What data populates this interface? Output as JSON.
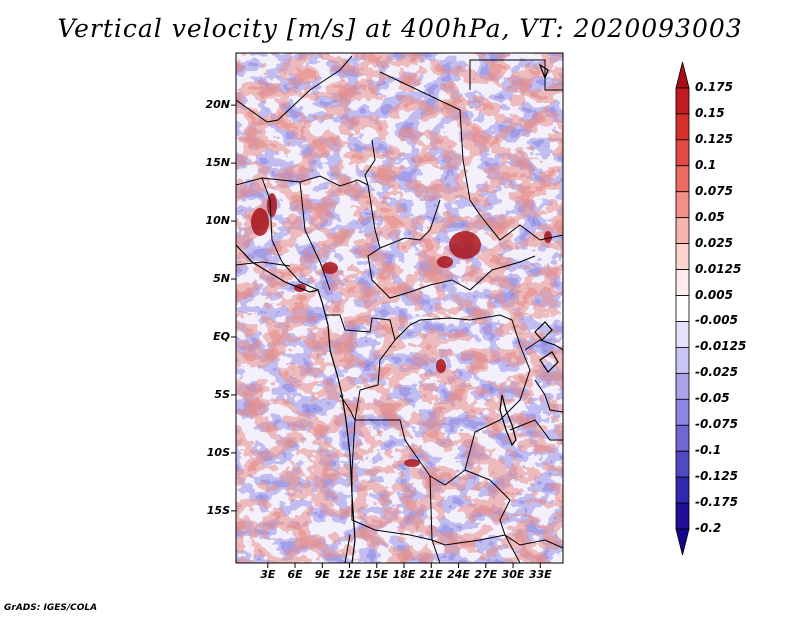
{
  "title": "Vertical velocity [m/s] at 400hPa, VT: 2020093003",
  "footer": "GrADS: IGES/COLA",
  "map": {
    "lat_range": [
      -19.5,
      24.5
    ],
    "lon_range": [
      -0.5,
      35.5
    ],
    "y_ticks": [
      "20N",
      "15N",
      "10N",
      "5N",
      "EQ",
      "5S",
      "10S",
      "15S"
    ],
    "y_tick_values": [
      20,
      15,
      10,
      5,
      0,
      -5,
      -10,
      -15
    ],
    "x_ticks": [
      "3E",
      "6E",
      "9E",
      "12E",
      "15E",
      "18E",
      "21E",
      "24E",
      "27E",
      "30E",
      "33E"
    ],
    "x_tick_values": [
      3,
      6,
      9,
      12,
      15,
      18,
      21,
      24,
      27,
      30,
      33
    ]
  },
  "colorbar": {
    "labels": [
      "0.175",
      "0.15",
      "0.125",
      "0.1",
      "0.075",
      "0.05",
      "0.025",
      "0.0125",
      "0.005",
      "-0.005",
      "-0.0125",
      "-0.025",
      "-0.05",
      "-0.075",
      "-0.1",
      "-0.125",
      "-0.175",
      "-0.2"
    ],
    "colors": [
      "#a50f15",
      "#c01d22",
      "#d7302a",
      "#e34a45",
      "#ed6b63",
      "#f28f87",
      "#f7b3ad",
      "#fbd4cf",
      "#fdecea",
      "#ffffff",
      "#e4e2fa",
      "#c8c4f3",
      "#a9a3ea",
      "#8d86e0",
      "#6f68d3",
      "#5149c3",
      "#3329b0",
      "#1d0f99",
      "#12078a"
    ]
  }
}
